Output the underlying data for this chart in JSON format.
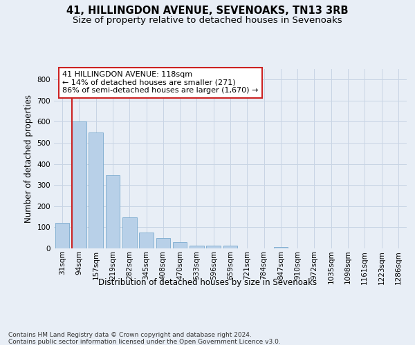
{
  "title": "41, HILLINGDON AVENUE, SEVENOAKS, TN13 3RB",
  "subtitle": "Size of property relative to detached houses in Sevenoaks",
  "xlabel": "Distribution of detached houses by size in Sevenoaks",
  "ylabel": "Number of detached properties",
  "categories": [
    "31sqm",
    "94sqm",
    "157sqm",
    "219sqm",
    "282sqm",
    "345sqm",
    "408sqm",
    "470sqm",
    "533sqm",
    "596sqm",
    "659sqm",
    "721sqm",
    "784sqm",
    "847sqm",
    "910sqm",
    "972sqm",
    "1035sqm",
    "1098sqm",
    "1161sqm",
    "1223sqm",
    "1286sqm"
  ],
  "values": [
    120,
    600,
    550,
    347,
    147,
    75,
    50,
    30,
    14,
    12,
    12,
    0,
    0,
    8,
    0,
    0,
    0,
    0,
    0,
    0,
    0
  ],
  "bar_color": "#b8d0e8",
  "bar_edge_color": "#7aaace",
  "grid_color": "#c8d4e4",
  "background_color": "#e8eef6",
  "annotation_text": "41 HILLINGDON AVENUE: 118sqm\n← 14% of detached houses are smaller (271)\n86% of semi-detached houses are larger (1,670) →",
  "red_color": "#cc2222",
  "ylim": [
    0,
    850
  ],
  "yticks": [
    0,
    100,
    200,
    300,
    400,
    500,
    600,
    700,
    800
  ],
  "footer": "Contains HM Land Registry data © Crown copyright and database right 2024.\nContains public sector information licensed under the Open Government Licence v3.0.",
  "title_fontsize": 10.5,
  "subtitle_fontsize": 9.5,
  "tick_fontsize": 7.5,
  "ylabel_fontsize": 8.5,
  "xlabel_fontsize": 8.5,
  "annotation_fontsize": 8,
  "footer_fontsize": 6.5
}
